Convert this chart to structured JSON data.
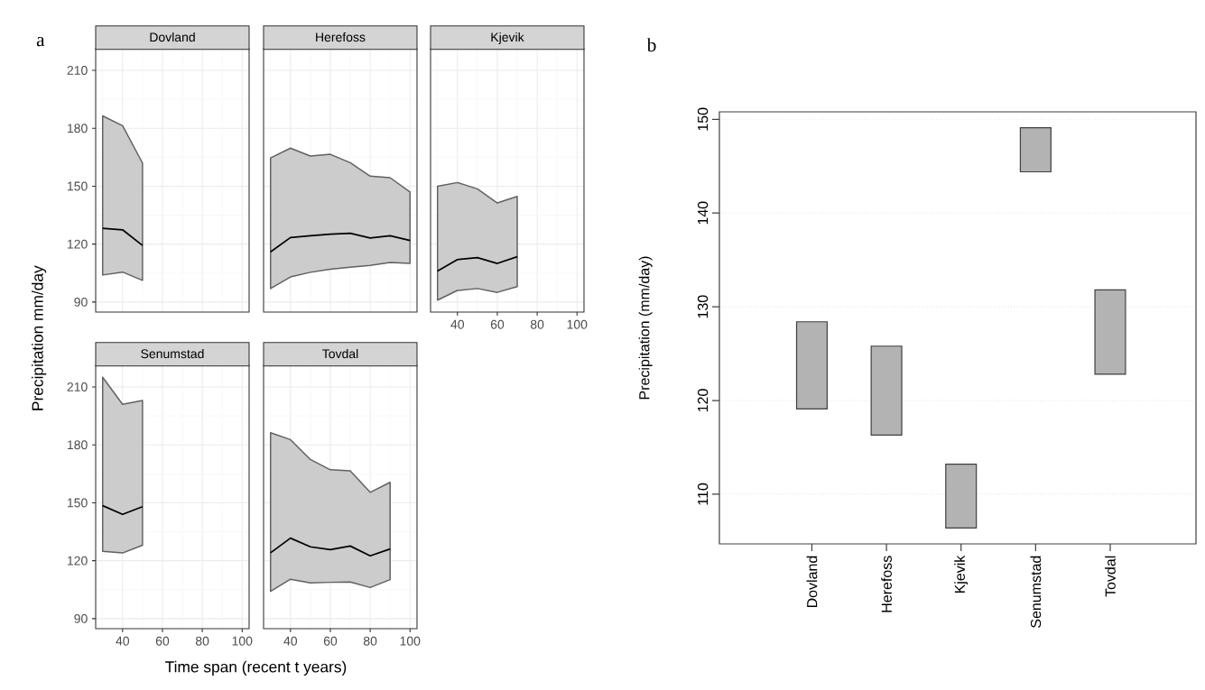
{
  "chart_data": [
    {
      "type": "line",
      "title": "Dovland",
      "ylabel": "Precipitation mm/day",
      "annotations": [
        "a"
      ],
      "x": [
        30,
        40,
        50
      ],
      "xlim": [
        26.5,
        103.5
      ],
      "ylim": [
        84.8,
        221.2
      ],
      "xticks": [
        40,
        60,
        80,
        100
      ],
      "yticks": [
        90,
        120,
        150,
        180,
        210
      ],
      "grid": true,
      "tick_labels": "y",
      "series": [
        {
          "color": "#000000",
          "values": [
            128.2,
            127.4,
            119.3
          ],
          "lower": [
            104,
            105.5,
            101.2
          ],
          "upper": [
            186.4,
            181.3,
            162
          ]
        }
      ]
    },
    {
      "type": "line",
      "title": "Herefoss",
      "x": [
        30,
        40,
        50,
        60,
        70,
        80,
        90,
        100
      ],
      "xlim": [
        26.5,
        103.5
      ],
      "ylim": [
        84.8,
        221.2
      ],
      "xticks": [
        40,
        60,
        80,
        100
      ],
      "yticks": [
        90,
        120,
        150,
        180,
        210
      ],
      "grid": true,
      "tick_labels": false,
      "series": [
        {
          "color": "#000000",
          "values": [
            116,
            123.4,
            124.3,
            125.1,
            125.6,
            123.2,
            124.3,
            121.9
          ],
          "lower": [
            97,
            103,
            105.4,
            107,
            108,
            109,
            110.5,
            110
          ],
          "upper": [
            164.6,
            169.7,
            165.6,
            166.5,
            162.2,
            155.2,
            154.4,
            147
          ]
        }
      ]
    },
    {
      "type": "line",
      "title": "Kjevik",
      "x": [
        30,
        40,
        50,
        60,
        70
      ],
      "xlim": [
        26.5,
        103.5
      ],
      "ylim": [
        84.8,
        221.2
      ],
      "xticks": [
        40,
        60,
        80,
        100
      ],
      "yticks": [
        90,
        120,
        150,
        180,
        210
      ],
      "grid": true,
      "tick_labels": "x",
      "series": [
        {
          "color": "#000000",
          "values": [
            106,
            112,
            113,
            110,
            113.5
          ],
          "lower": [
            91,
            96,
            97,
            95,
            98
          ],
          "upper": [
            150,
            151.9,
            148.6,
            141.3,
            144.7
          ]
        }
      ]
    },
    {
      "type": "line",
      "title": "Senumstad",
      "x": [
        30,
        40,
        50
      ],
      "xlim": [
        26.5,
        103.5
      ],
      "ylim": [
        84.8,
        221.2
      ],
      "xticks": [
        40,
        60,
        80,
        100
      ],
      "yticks": [
        90,
        120,
        150,
        180,
        210
      ],
      "grid": true,
      "series": [
        {
          "color": "#000000",
          "values": [
            148.5,
            144,
            148
          ],
          "lower": [
            124.9,
            124,
            128
          ],
          "upper": [
            215,
            201,
            203
          ]
        }
      ]
    },
    {
      "type": "line",
      "title": "Tovdal",
      "xlabel": "Time span (recent t years)",
      "x": [
        30,
        40,
        50,
        60,
        70,
        80,
        90
      ],
      "xlim": [
        26.5,
        103.5
      ],
      "ylim": [
        84.8,
        221.2
      ],
      "xticks": [
        40,
        60,
        80,
        100
      ],
      "yticks": [
        90,
        120,
        150,
        180,
        210
      ],
      "grid": true,
      "tick_labels": "x",
      "series": [
        {
          "color": "#000000",
          "values": [
            124.1,
            131.7,
            127.2,
            125.7,
            127.6,
            122.5,
            126.1
          ],
          "lower": [
            104.1,
            110.4,
            108.5,
            108.8,
            109,
            106.1,
            110.2
          ],
          "upper": [
            186.3,
            182.7,
            172.4,
            167.1,
            166.5,
            155.4,
            160.6
          ]
        }
      ]
    },
    {
      "type": "bar",
      "ylabel": "Precipitation (mm/day)",
      "annotations": [
        "b"
      ],
      "categories": [
        "Dovland",
        "Herefoss",
        "Kjevik",
        "Senumstad",
        "Tovdal"
      ],
      "base": [
        119.1,
        116.3,
        106.4,
        144.4,
        122.8
      ],
      "values": [
        9.3,
        9.5,
        6.8,
        4.7,
        9.0
      ],
      "color": "#b3b3b3",
      "ylim": [
        104.7,
        150.8
      ],
      "yticks": [
        110,
        120,
        130,
        140,
        150
      ],
      "grid": "y"
    }
  ]
}
